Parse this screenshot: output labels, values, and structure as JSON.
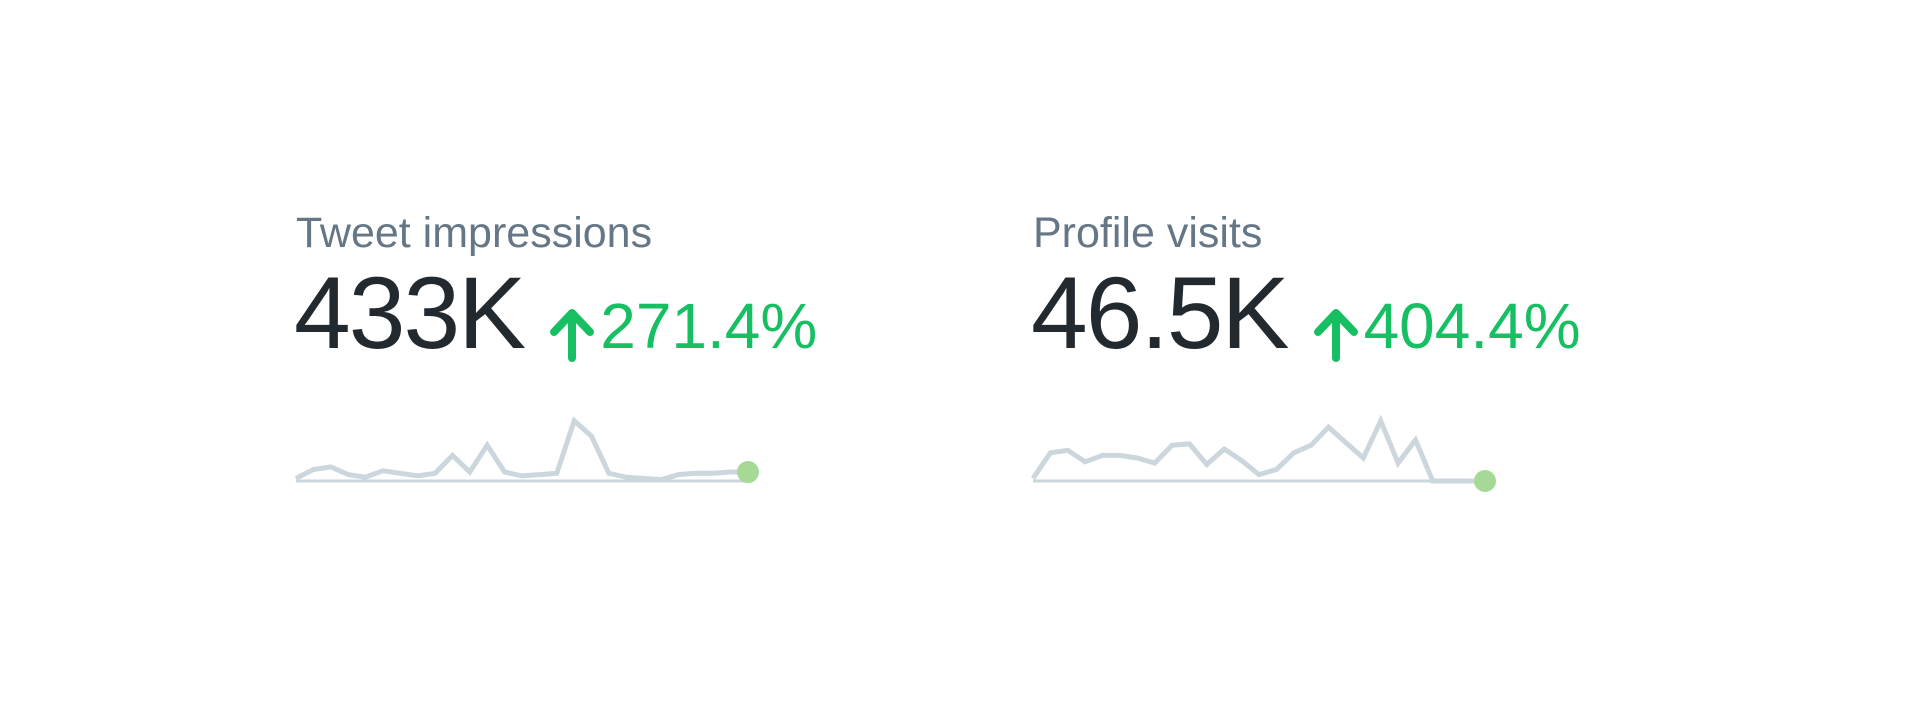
{
  "colors": {
    "label": "#657786",
    "value": "#22292f",
    "positive_change": "#17bf63",
    "sparkline": "#ccd6dd",
    "sparkline_end_dot": "#a6d996"
  },
  "icons": {
    "change_direction": "arrow-up-icon"
  },
  "stats": [
    {
      "label": "Tweet impressions",
      "value": "433K",
      "change": "271.4%",
      "trend": "up"
    },
    {
      "label": "Profile visits",
      "value": "46.5K",
      "change": "404.4%",
      "trend": "up"
    }
  ],
  "chart_data": [
    {
      "type": "line",
      "series": [
        {
          "values": [
            2,
            9,
            11,
            5,
            3,
            8,
            6,
            4,
            6,
            20,
            7,
            28,
            7,
            4,
            5,
            6,
            47,
            35,
            6,
            3,
            2,
            1,
            5,
            6,
            6,
            7,
            7
          ]
        }
      ],
      "ylim": [
        0,
        50
      ],
      "grid": false,
      "end_marker": true
    },
    {
      "type": "line",
      "series": [
        {
          "values": [
            2,
            22,
            24,
            15,
            20,
            20,
            18,
            14,
            28,
            29,
            13,
            25,
            16,
            5,
            9,
            22,
            28,
            42,
            30,
            18,
            47,
            14,
            32,
            0,
            0,
            0,
            0
          ]
        }
      ],
      "ylim": [
        0,
        50
      ],
      "grid": false,
      "end_marker": true
    }
  ]
}
